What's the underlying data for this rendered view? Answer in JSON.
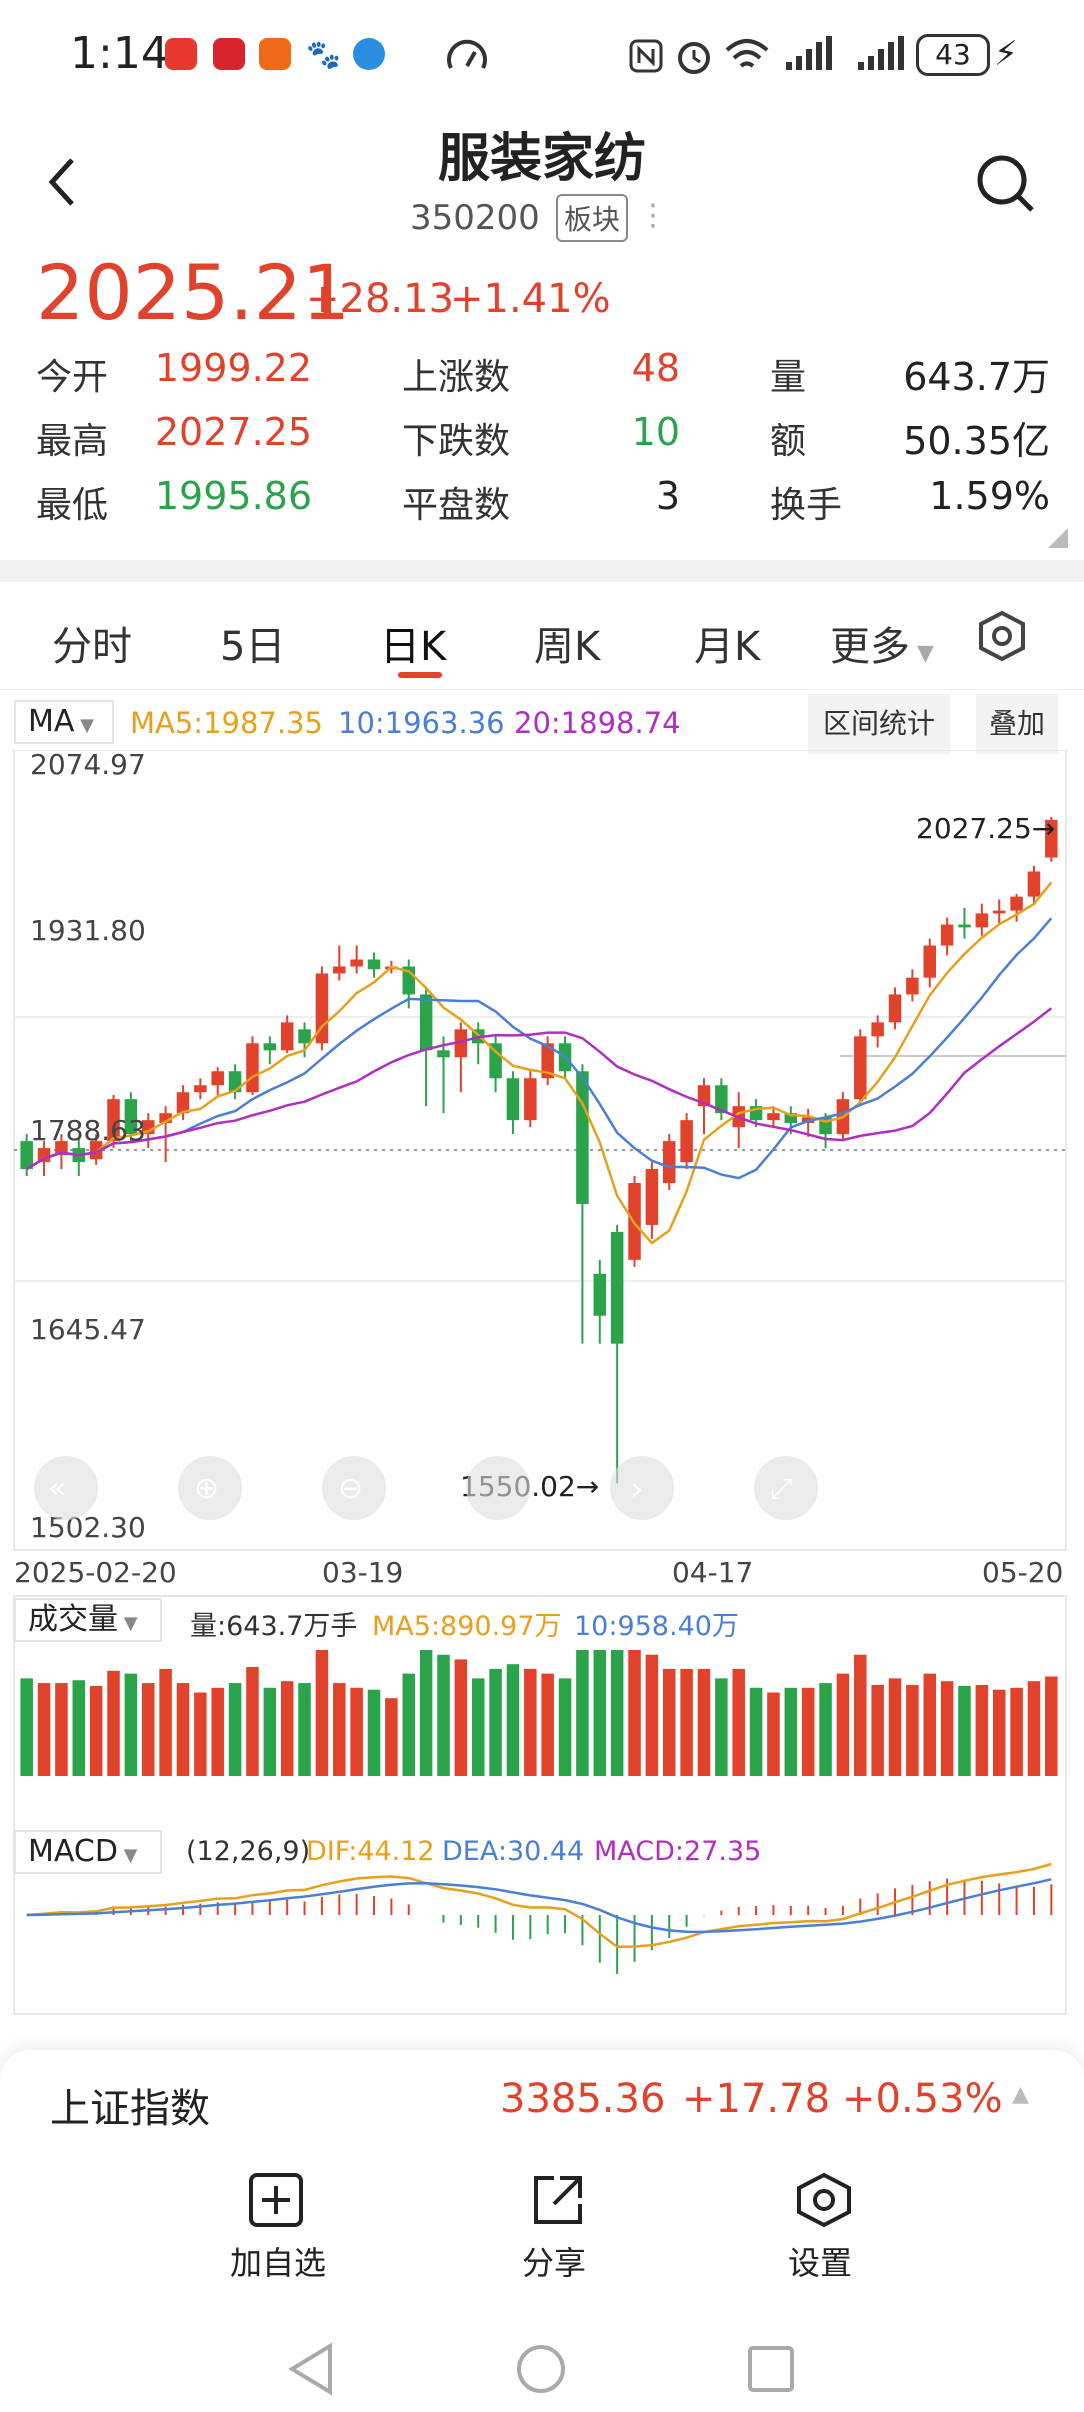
{
  "status_bar": {
    "time": "1:14",
    "battery": "43"
  },
  "header": {
    "title": "服装家纺",
    "code": "350200",
    "tag": "板块"
  },
  "quote": {
    "price": "2025.21",
    "change": "+28.13",
    "change_pct": "+1.41%",
    "rows": [
      {
        "l1": "今开",
        "v1": "1999.22",
        "l2": "上涨数",
        "v2": "48",
        "l3": "量",
        "v3": "643.7万"
      },
      {
        "l1": "最高",
        "v1": "2027.25",
        "l2": "下跌数",
        "v2": "10",
        "l3": "额",
        "v3": "50.35亿"
      },
      {
        "l1": "最低",
        "v1": "1995.86",
        "l2": "平盘数",
        "v2": "3",
        "l3": "换手",
        "v3": "1.59%"
      }
    ]
  },
  "tabs": [
    "分时",
    "5日",
    "日K",
    "周K",
    "月K",
    "更多"
  ],
  "active_tab": "日K",
  "ma_bar": {
    "label": "MA",
    "ma5": "MA5:1987.35",
    "ma10": "10:1963.36",
    "ma20": "20:1898.74",
    "range_btn": "区间统计",
    "overlay_btn": "叠加"
  },
  "axis": {
    "y_top": "2074.97",
    "y_2": "1931.80",
    "y_3": "1788.63",
    "y_4": "1645.47",
    "y_bottom": "1502.30",
    "x_labels": [
      "2025-02-20",
      "03-19",
      "04-17",
      "05-20"
    ],
    "high_mark": "2027.25→",
    "low_mark": "1550.02→"
  },
  "volume": {
    "label": "成交量",
    "vol": "量:643.7万手",
    "ma5": "MA5:890.97万",
    "ma10": "10:958.40万"
  },
  "macd": {
    "label": "MACD",
    "params": "(12,26,9)",
    "dif": "DIF:44.12",
    "dea": "DEA:30.44",
    "macd": "MACD:27.35"
  },
  "index_bar": {
    "name": "上证指数",
    "price": "3385.36",
    "change": "+17.78",
    "pct": "+0.53%"
  },
  "actions": {
    "add": "加自选",
    "share": "分享",
    "settings": "设置"
  },
  "colors": {
    "up": "#e0422c",
    "down": "#2aa34a",
    "ma5": "#e8a01c",
    "ma10": "#4a7fd4",
    "ma20": "#b02ec0"
  },
  "chart_data": {
    "type": "candlestick",
    "x_labels": [
      "2025-02-20",
      "03-19",
      "04-17",
      "05-20"
    ],
    "ylim": [
      1502.3,
      2074.97
    ],
    "y_ticks": [
      2074.97,
      1931.8,
      1788.63,
      1645.47,
      1502.3
    ],
    "candles": [
      [
        1795,
        1775,
        1800,
        1770
      ],
      [
        1780,
        1790,
        1795,
        1770
      ],
      [
        1785,
        1795,
        1800,
        1775
      ],
      [
        1790,
        1780,
        1798,
        1770
      ],
      [
        1782,
        1795,
        1800,
        1778
      ],
      [
        1795,
        1825,
        1828,
        1790
      ],
      [
        1825,
        1800,
        1830,
        1795
      ],
      [
        1800,
        1810,
        1815,
        1790
      ],
      [
        1808,
        1815,
        1820,
        1780
      ],
      [
        1815,
        1830,
        1835,
        1810
      ],
      [
        1830,
        1835,
        1840,
        1825
      ],
      [
        1835,
        1845,
        1848,
        1828
      ],
      [
        1845,
        1830,
        1850,
        1825
      ],
      [
        1830,
        1865,
        1870,
        1828
      ],
      [
        1865,
        1860,
        1870,
        1850
      ],
      [
        1860,
        1880,
        1885,
        1858
      ],
      [
        1875,
        1865,
        1880,
        1855
      ],
      [
        1865,
        1915,
        1920,
        1860
      ],
      [
        1915,
        1920,
        1935,
        1910
      ],
      [
        1920,
        1925,
        1935,
        1915
      ],
      [
        1925,
        1918,
        1930,
        1912
      ],
      [
        1918,
        1920,
        1924,
        1915
      ],
      [
        1920,
        1900,
        1925,
        1890
      ],
      [
        1900,
        1860,
        1905,
        1820
      ],
      [
        1860,
        1855,
        1870,
        1815
      ],
      [
        1855,
        1875,
        1880,
        1830
      ],
      [
        1875,
        1865,
        1880,
        1850
      ],
      [
        1865,
        1840,
        1870,
        1830
      ],
      [
        1840,
        1810,
        1845,
        1800
      ],
      [
        1810,
        1840,
        1845,
        1805
      ],
      [
        1840,
        1865,
        1870,
        1835
      ],
      [
        1865,
        1845,
        1870,
        1840
      ],
      [
        1845,
        1750,
        1850,
        1650
      ],
      [
        1700,
        1670,
        1710,
        1650
      ],
      [
        1730,
        1650,
        1735,
        1550
      ],
      [
        1710,
        1765,
        1770,
        1705
      ],
      [
        1735,
        1775,
        1780,
        1725
      ],
      [
        1765,
        1795,
        1800,
        1760
      ],
      [
        1780,
        1810,
        1815,
        1775
      ],
      [
        1820,
        1835,
        1840,
        1800
      ],
      [
        1835,
        1815,
        1840,
        1810
      ],
      [
        1805,
        1820,
        1830,
        1790
      ],
      [
        1820,
        1810,
        1825,
        1805
      ],
      [
        1810,
        1815,
        1820,
        1805
      ],
      [
        1815,
        1808,
        1820,
        1800
      ],
      [
        1808,
        1812,
        1818,
        1798
      ],
      [
        1812,
        1800,
        1815,
        1790
      ],
      [
        1800,
        1825,
        1830,
        1795
      ],
      [
        1825,
        1870,
        1875,
        1820
      ],
      [
        1870,
        1880,
        1885,
        1862
      ],
      [
        1880,
        1900,
        1905,
        1875
      ],
      [
        1900,
        1912,
        1918,
        1895
      ],
      [
        1912,
        1935,
        1940,
        1905
      ],
      [
        1935,
        1950,
        1955,
        1928
      ],
      [
        1950,
        1948,
        1962,
        1940
      ],
      [
        1948,
        1958,
        1965,
        1942
      ],
      [
        1958,
        1960,
        1968,
        1950
      ],
      [
        1960,
        1970,
        1972,
        1952
      ],
      [
        1970,
        1988,
        1992,
        1965
      ],
      [
        1998,
        2025,
        2027,
        1995
      ]
    ]
  }
}
